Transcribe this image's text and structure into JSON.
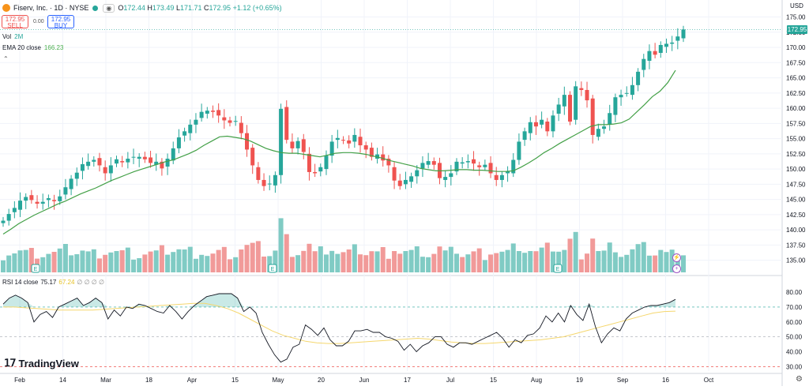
{
  "header": {
    "title": "Fiserv, Inc. · 1D · NYSE",
    "open_label": "O",
    "open": "172.44",
    "high_label": "H",
    "high": "173.49",
    "low_label": "L",
    "low": "171.71",
    "close_label": "C",
    "close": "172.95",
    "change": "+1.12 (+0.65%)"
  },
  "trade": {
    "sell_price": "172.95",
    "sell_label": "SELL",
    "spread": "0.00",
    "buy_price": "172.95",
    "buy_label": "BUY"
  },
  "indicators": {
    "vol_label": "Vol",
    "vol_value": "2M",
    "ema_label": "EMA 20 close",
    "ema_value": "166.23",
    "rsi_label": "RSI 14 close",
    "rsi_value": "75.17",
    "rsi_ma_value": "67.24",
    "rsi_placeholders": "∅ ∅ ∅ ∅"
  },
  "currency": "USD",
  "last_price_badge": "172.95",
  "brand": "TradingView",
  "earnings_marker": "E",
  "colors": {
    "up": "#26a69a",
    "down": "#ef5350",
    "ema": "#43a047",
    "rsi": "#131722",
    "rsi_ma": "#f5d76e",
    "vol_up": "#80cbc4",
    "vol_down": "#f19a99"
  },
  "chart_data": [
    {
      "type": "candlestick",
      "title": "Fiserv, Inc. · 1D · NYSE",
      "ylim": [
        133,
        176.5
      ],
      "y_ticks": [
        "175.00",
        "172.50",
        "170.00",
        "167.50",
        "165.00",
        "162.50",
        "160.00",
        "157.50",
        "155.00",
        "152.50",
        "150.00",
        "147.50",
        "145.00",
        "142.50",
        "140.00",
        "137.50",
        "135.00"
      ],
      "x_ticks": [
        "Feb",
        "14",
        "Mar",
        "18",
        "Apr",
        "15",
        "May",
        "20",
        "Jun",
        "17",
        "Jul",
        "15",
        "Aug",
        "19",
        "Sep",
        "16",
        "Oct"
      ],
      "grid": true,
      "closes": [
        141.5,
        142.6,
        143.6,
        144.8,
        145.4,
        144.9,
        144.3,
        144.6,
        145.2,
        144.7,
        145.5,
        147.0,
        148.4,
        149.4,
        150.8,
        151.2,
        151.5,
        150.6,
        149.3,
        150.6,
        151.6,
        151.1,
        151.7,
        152.0,
        152.0,
        151.6,
        151.0,
        151.2,
        150.1,
        151.7,
        153.4,
        155.2,
        156.2,
        157.3,
        158.1,
        159.4,
        159.6,
        159.4,
        158.8,
        158.0,
        157.6,
        157.9,
        155.9,
        153.2,
        150.6,
        148.2,
        147.2,
        147.6,
        149.0,
        159.9,
        154.8,
        153.4,
        154.6,
        152.8,
        149.5,
        149.3,
        150.3,
        152.2,
        154.5,
        155.1,
        154.7,
        154.2,
        155.6,
        153.9,
        153.2,
        152.0,
        152.4,
        151.4,
        150.6,
        148.1,
        147.2,
        148.2,
        148.8,
        149.8,
        151.0,
        151.3,
        150.7,
        148.5,
        148.7,
        149.3,
        151.2,
        151.1,
        151.3,
        150.9,
        150.3,
        150.7,
        149.3,
        148.2,
        149.0,
        149.6,
        151.5,
        154.5,
        156.2,
        157.7,
        157.0,
        158.1,
        156.2,
        158.8,
        160.6,
        162.2,
        157.8,
        163.6,
        163.0,
        161.3,
        155.6,
        156.6,
        157.0,
        159.2,
        161.8,
        162.2,
        162.5,
        163.8,
        166.0,
        168.1,
        169.4,
        168.8,
        170.4,
        170.6,
        170.8,
        171.8,
        172.95
      ],
      "ema20": [
        139.3,
        140.1,
        141.0,
        141.7,
        142.4,
        143.0,
        143.6,
        144.2,
        144.7,
        145.3,
        145.9,
        146.4,
        146.9,
        147.5,
        148.1,
        148.6,
        149.1,
        149.6,
        150.0,
        150.4,
        150.8,
        151.2,
        151.5,
        152.0,
        152.5,
        153.1,
        153.9,
        154.6,
        155.3,
        155.4,
        155.2,
        155.0,
        154.6,
        154.0,
        153.4,
        153.0,
        152.7,
        152.6,
        152.6,
        152.4,
        152.2,
        152.0,
        152.3,
        152.6,
        152.7,
        152.7,
        152.6,
        152.4,
        152.1,
        151.8,
        151.4,
        151.1,
        150.8,
        150.5,
        150.1,
        149.9,
        149.7,
        149.7,
        149.8,
        149.9,
        149.9,
        149.8,
        149.8,
        149.7,
        149.6,
        149.6,
        149.7,
        150.3,
        151.0,
        151.8,
        152.7,
        153.4,
        154.2,
        154.9,
        155.6,
        156.3,
        157.0,
        157.3,
        157.3,
        157.4,
        157.6,
        158.2,
        159.4,
        160.6,
        161.9,
        162.8,
        164.2,
        166.23
      ],
      "ema20_x_start": 0
    },
    {
      "type": "bar",
      "title": "Vol",
      "series_name": "Vol",
      "last_value": "2M"
    },
    {
      "type": "line",
      "title": "RSI 14 close",
      "ylim": [
        27,
        88
      ],
      "y_ticks": [
        "80.00",
        "70.00",
        "60.00",
        "50.00",
        "40.00",
        "30.00"
      ],
      "bands": [
        70,
        50,
        30
      ],
      "series": [
        {
          "name": "RSI 14 close",
          "last_value": 75.17,
          "values": [
            72,
            76,
            78,
            76,
            73,
            60,
            65,
            67,
            63,
            70,
            72,
            74,
            76,
            71,
            73,
            76,
            73,
            62,
            68,
            64,
            70,
            69,
            72,
            71,
            69,
            67,
            66,
            71,
            67,
            62,
            67,
            71,
            74,
            77,
            78,
            79,
            79,
            79,
            76,
            67,
            70,
            66,
            53,
            45,
            38,
            33,
            35,
            43,
            45,
            58,
            55,
            51,
            56,
            48,
            44,
            44,
            47,
            54,
            54,
            55,
            53,
            53,
            50,
            49,
            47,
            41,
            45,
            40,
            44,
            46,
            50,
            50,
            45,
            43,
            46,
            46,
            45,
            47,
            49,
            51,
            53,
            49,
            43,
            48,
            46,
            51,
            52,
            56,
            64,
            60,
            66,
            60,
            71,
            65,
            61,
            72,
            57,
            46,
            52,
            56,
            54,
            62,
            66,
            68,
            70,
            71,
            71,
            72,
            73,
            75.17
          ]
        },
        {
          "name": "RSI MA",
          "last_value": 67.24,
          "values": [
            70,
            70,
            69.5,
            69,
            68.5,
            68,
            68,
            68,
            68,
            68.5,
            69,
            69.5,
            70,
            70.5,
            71,
            71.5,
            72,
            72.5,
            72.5,
            71,
            69,
            66,
            62,
            58,
            54,
            51,
            49,
            47,
            46,
            45.5,
            45.5,
            46,
            46.5,
            47,
            47.5,
            48,
            48.5,
            49,
            48.5,
            47.5,
            46.5,
            46,
            45.5,
            45.5,
            46,
            46.5,
            47,
            47.5,
            48,
            49,
            50,
            52,
            54,
            56,
            58,
            60,
            62,
            64,
            66,
            67,
            67.24
          ]
        }
      ]
    }
  ]
}
